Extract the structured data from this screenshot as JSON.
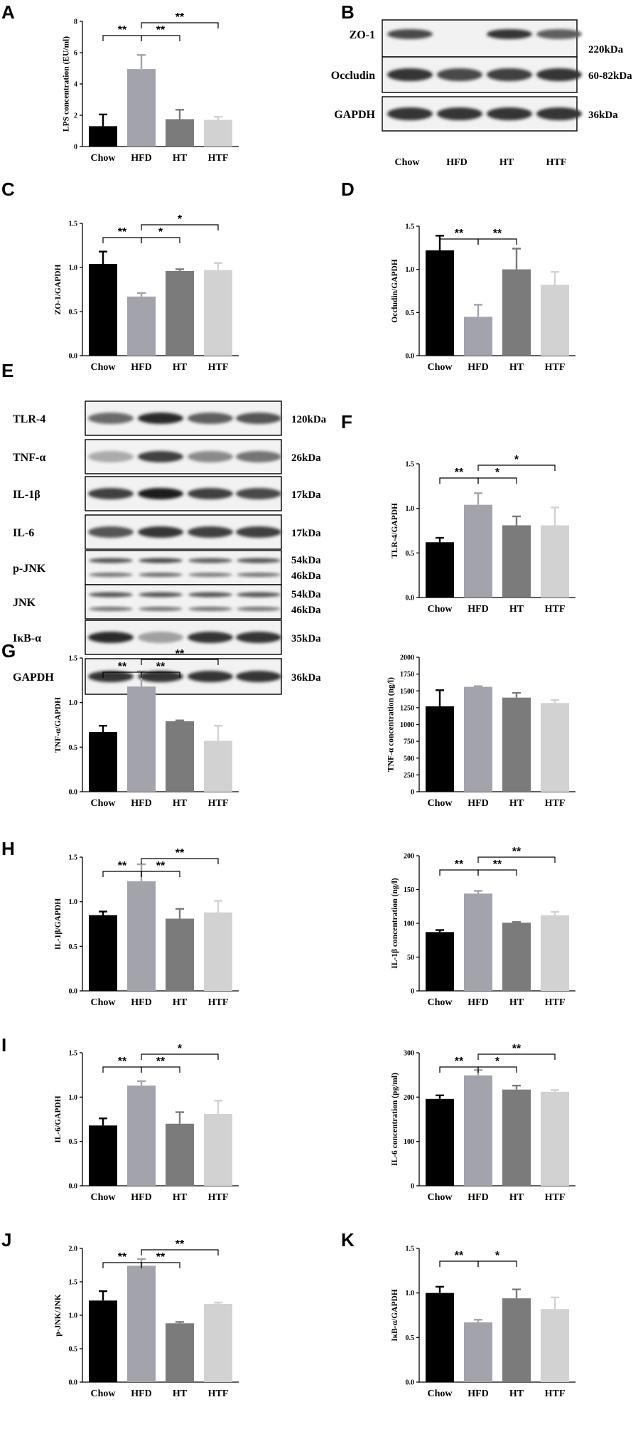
{
  "panel_labels": [
    "A",
    "B",
    "C",
    "D",
    "E",
    "F",
    "G",
    "H",
    "I",
    "J",
    "K"
  ],
  "blot_B": {
    "label": "B",
    "rows": [
      {
        "name": "ZO-1",
        "kda": "220kDa",
        "intensity": [
          0.75,
          0.0,
          0.85,
          0.65
        ]
      },
      {
        "name": "Occludin",
        "kda": "60-82kDa",
        "intensity": [
          0.85,
          0.75,
          0.8,
          0.85
        ]
      },
      {
        "name": "GAPDH",
        "kda": "36kDa",
        "intensity": [
          0.85,
          0.85,
          0.85,
          0.85
        ]
      }
    ],
    "lanes": [
      "Chow",
      "HFD",
      "HT",
      "HTF"
    ]
  },
  "blot_E": {
    "label": "E",
    "rows": [
      {
        "name": "TLR-4",
        "kda": [
          "120kDa"
        ],
        "intensity": [
          0.6,
          0.9,
          0.65,
          0.7
        ]
      },
      {
        "name": "TNF-α",
        "kda": [
          "26kDa"
        ],
        "intensity": [
          0.3,
          0.8,
          0.45,
          0.55
        ]
      },
      {
        "name": "IL-1β",
        "kda": [
          "17kDa"
        ],
        "intensity": [
          0.8,
          0.95,
          0.8,
          0.75
        ]
      },
      {
        "name": "IL-6",
        "kda": [
          "17kDa"
        ],
        "intensity": [
          0.7,
          0.85,
          0.8,
          0.8
        ]
      },
      {
        "name": "p-JNK",
        "kda": [
          "54kDa",
          "46kDa"
        ],
        "intensity": [
          0.7,
          0.75,
          0.65,
          0.7
        ]
      },
      {
        "name": "JNK",
        "kda": [
          "54kDa",
          "46kDa"
        ],
        "intensity": [
          0.7,
          0.7,
          0.7,
          0.7
        ]
      },
      {
        "name": "IκB-α",
        "kda": [
          "35kDa"
        ],
        "intensity": [
          0.9,
          0.35,
          0.85,
          0.85
        ]
      },
      {
        "name": "GAPDH",
        "kda": [
          "36kDa"
        ],
        "intensity": [
          0.85,
          0.85,
          0.85,
          0.85
        ]
      }
    ]
  },
  "chart_data": [
    {
      "id": "A",
      "type": "bar",
      "ylabel": "LPS concentration (EU/ml)",
      "categories": [
        "Chow",
        "HFD",
        "HT",
        "HTF"
      ],
      "values": [
        1.3,
        4.95,
        1.75,
        1.7
      ],
      "errors": [
        0.75,
        0.9,
        0.6,
        0.2
      ],
      "ylim": [
        0,
        8
      ],
      "yticks": [
        "0",
        "2",
        "4",
        "6",
        "8"
      ],
      "ytick_values": [
        0,
        2,
        4,
        6,
        8
      ],
      "colors": [
        "#000000",
        "#a3a3ab",
        "#7b7b7b",
        "#d2d2d2"
      ],
      "significance": [
        {
          "from": 1,
          "to": 0,
          "label": "**"
        },
        {
          "from": 1,
          "to": 2,
          "label": "**"
        },
        {
          "from": 1,
          "to": 3,
          "label": "**"
        }
      ]
    },
    {
      "id": "C",
      "type": "bar",
      "ylabel": "ZO-1/GAPDH",
      "categories": [
        "Chow",
        "HFD",
        "HT",
        "HTF"
      ],
      "values": [
        1.04,
        0.67,
        0.96,
        0.97
      ],
      "errors": [
        0.14,
        0.04,
        0.02,
        0.08
      ],
      "ylim": [
        0,
        1.5
      ],
      "yticks": [
        "0.0",
        "0.5",
        "1.0",
        "1.5"
      ],
      "ytick_values": [
        0,
        0.5,
        1.0,
        1.5
      ],
      "colors": [
        "#000000",
        "#a3a3ab",
        "#7b7b7b",
        "#d2d2d2"
      ],
      "significance": [
        {
          "from": 1,
          "to": 0,
          "label": "**"
        },
        {
          "from": 1,
          "to": 2,
          "label": "*"
        },
        {
          "from": 1,
          "to": 3,
          "label": "*"
        }
      ]
    },
    {
      "id": "D",
      "type": "bar",
      "ylabel": "Occludin/GAPDH",
      "categories": [
        "Chow",
        "HFD",
        "HT",
        "HTF"
      ],
      "values": [
        1.22,
        0.45,
        1.0,
        0.82
      ],
      "errors": [
        0.17,
        0.14,
        0.24,
        0.15
      ],
      "ylim": [
        0,
        1.5
      ],
      "yticks": [
        "0.0",
        "0.5",
        "1.0",
        "1.5"
      ],
      "ytick_values": [
        0,
        0.5,
        1.0,
        1.5
      ],
      "colors": [
        "#000000",
        "#a3a3ab",
        "#7b7b7b",
        "#d2d2d2"
      ],
      "significance": [
        {
          "from": 1,
          "to": 0,
          "label": "**"
        },
        {
          "from": 1,
          "to": 2,
          "label": "**"
        }
      ]
    },
    {
      "id": "F",
      "type": "bar",
      "ylabel": "TLR-4/GAPDH",
      "categories": [
        "Chow",
        "HFD",
        "HT",
        "HTF"
      ],
      "values": [
        0.62,
        1.04,
        0.81,
        0.81
      ],
      "errors": [
        0.05,
        0.13,
        0.1,
        0.2
      ],
      "ylim": [
        0,
        1.5
      ],
      "yticks": [
        "0.0",
        "0.5",
        "1.0",
        "1.5"
      ],
      "ytick_values": [
        0,
        0.5,
        1.0,
        1.5
      ],
      "colors": [
        "#000000",
        "#a3a3ab",
        "#7b7b7b",
        "#d2d2d2"
      ],
      "significance": [
        {
          "from": 1,
          "to": 0,
          "label": "**"
        },
        {
          "from": 1,
          "to": 2,
          "label": "*"
        },
        {
          "from": 1,
          "to": 3,
          "label": "*"
        }
      ]
    },
    {
      "id": "G1",
      "type": "bar",
      "ylabel": "TNF-α/GAPDH",
      "categories": [
        "Chow",
        "HFD",
        "HT",
        "HTF"
      ],
      "values": [
        0.67,
        1.18,
        0.79,
        0.57
      ],
      "errors": [
        0.07,
        0.17,
        0.01,
        0.17
      ],
      "ylim": [
        0,
        1.5
      ],
      "yticks": [
        "0.0",
        "0.5",
        "1.0",
        "1.5"
      ],
      "ytick_values": [
        0,
        0.5,
        1.0,
        1.5
      ],
      "colors": [
        "#000000",
        "#a3a3ab",
        "#7b7b7b",
        "#d2d2d2"
      ],
      "significance": [
        {
          "from": 1,
          "to": 0,
          "label": "**"
        },
        {
          "from": 1,
          "to": 2,
          "label": "**"
        },
        {
          "from": 1,
          "to": 3,
          "label": "**"
        }
      ]
    },
    {
      "id": "G2",
      "type": "bar",
      "ylabel": "TNF-α concentration (ng/l)",
      "categories": [
        "Chow",
        "HFD",
        "HT",
        "HTF"
      ],
      "values": [
        1270,
        1560,
        1400,
        1320
      ],
      "errors": [
        240,
        10,
        70,
        45
      ],
      "ylim": [
        0,
        2000
      ],
      "yticks": [
        "0",
        "250",
        "500",
        "750",
        "1000",
        "1250",
        "1500",
        "1750",
        "2000"
      ],
      "ytick_values": [
        0,
        250,
        500,
        750,
        1000,
        1250,
        1500,
        1750,
        2000
      ],
      "colors": [
        "#000000",
        "#a3a3ab",
        "#7b7b7b",
        "#d2d2d2"
      ],
      "significance": []
    },
    {
      "id": "H1",
      "type": "bar",
      "ylabel": "IL-1β/GAPDH",
      "categories": [
        "Chow",
        "HFD",
        "HT",
        "HTF"
      ],
      "values": [
        0.85,
        1.23,
        0.81,
        0.88
      ],
      "errors": [
        0.04,
        0.19,
        0.11,
        0.13
      ],
      "ylim": [
        0,
        1.5
      ],
      "yticks": [
        "0.0",
        "0.5",
        "1.0",
        "1.5"
      ],
      "ytick_values": [
        0,
        0.5,
        1.0,
        1.5
      ],
      "colors": [
        "#000000",
        "#a3a3ab",
        "#7b7b7b",
        "#d2d2d2"
      ],
      "significance": [
        {
          "from": 1,
          "to": 0,
          "label": "**"
        },
        {
          "from": 1,
          "to": 2,
          "label": "**"
        },
        {
          "from": 1,
          "to": 3,
          "label": "**"
        }
      ]
    },
    {
      "id": "H2",
      "type": "bar",
      "ylabel": "IL-1β concentration (ng/l)",
      "categories": [
        "Chow",
        "HFD",
        "HT",
        "HTF"
      ],
      "values": [
        87,
        144,
        101,
        112
      ],
      "errors": [
        3,
        4,
        1,
        5
      ],
      "ylim": [
        0,
        200
      ],
      "yticks": [
        "0",
        "50",
        "100",
        "150",
        "200"
      ],
      "ytick_values": [
        0,
        50,
        100,
        150,
        200
      ],
      "colors": [
        "#000000",
        "#a3a3ab",
        "#7b7b7b",
        "#d2d2d2"
      ],
      "significance": [
        {
          "from": 1,
          "to": 0,
          "label": "**"
        },
        {
          "from": 1,
          "to": 2,
          "label": "**"
        },
        {
          "from": 1,
          "to": 3,
          "label": "**"
        }
      ]
    },
    {
      "id": "I1",
      "type": "bar",
      "ylabel": "IL-6/GAPDH",
      "categories": [
        "Chow",
        "HFD",
        "HT",
        "HTF"
      ],
      "values": [
        0.68,
        1.13,
        0.7,
        0.81
      ],
      "errors": [
        0.08,
        0.05,
        0.13,
        0.15
      ],
      "ylim": [
        0,
        1.5
      ],
      "yticks": [
        "0.0",
        "0.5",
        "1.0",
        "1.5"
      ],
      "ytick_values": [
        0,
        0.5,
        1.0,
        1.5
      ],
      "colors": [
        "#000000",
        "#a3a3ab",
        "#7b7b7b",
        "#d2d2d2"
      ],
      "significance": [
        {
          "from": 1,
          "to": 0,
          "label": "**"
        },
        {
          "from": 1,
          "to": 2,
          "label": "**"
        },
        {
          "from": 1,
          "to": 3,
          "label": "*"
        }
      ]
    },
    {
      "id": "I2",
      "type": "bar",
      "ylabel": "IL-6 concentration (pg/ml)",
      "categories": [
        "Chow",
        "HFD",
        "HT",
        "HTF"
      ],
      "values": [
        196,
        249,
        217,
        212
      ],
      "errors": [
        8,
        12,
        9,
        4
      ],
      "ylim": [
        0,
        300
      ],
      "yticks": [
        "0",
        "100",
        "200",
        "300"
      ],
      "ytick_values": [
        0,
        100,
        200,
        300
      ],
      "colors": [
        "#000000",
        "#a3a3ab",
        "#7b7b7b",
        "#d2d2d2"
      ],
      "significance": [
        {
          "from": 1,
          "to": 0,
          "label": "**"
        },
        {
          "from": 1,
          "to": 2,
          "label": "*"
        },
        {
          "from": 1,
          "to": 3,
          "label": "**"
        }
      ]
    },
    {
      "id": "J",
      "type": "bar",
      "ylabel": "p-JNK/JNK",
      "categories": [
        "Chow",
        "HFD",
        "HT",
        "HTF"
      ],
      "values": [
        1.22,
        1.74,
        0.88,
        1.17
      ],
      "errors": [
        0.14,
        0.1,
        0.02,
        0.02
      ],
      "ylim": [
        0,
        2.0
      ],
      "yticks": [
        "0.0",
        "0.5",
        "1.0",
        "1.5",
        "2.0"
      ],
      "ytick_values": [
        0,
        0.5,
        1.0,
        1.5,
        2.0
      ],
      "colors": [
        "#000000",
        "#a3a3ab",
        "#7b7b7b",
        "#d2d2d2"
      ],
      "significance": [
        {
          "from": 1,
          "to": 0,
          "label": "**"
        },
        {
          "from": 1,
          "to": 2,
          "label": "**"
        },
        {
          "from": 1,
          "to": 3,
          "label": "**"
        }
      ]
    },
    {
      "id": "K",
      "type": "bar",
      "ylabel": "IκB-α/GAPDH",
      "categories": [
        "Chow",
        "HFD",
        "HT",
        "HTF"
      ],
      "values": [
        1.0,
        0.67,
        0.94,
        0.82
      ],
      "errors": [
        0.07,
        0.03,
        0.1,
        0.13
      ],
      "ylim": [
        0,
        1.5
      ],
      "yticks": [
        "0.0",
        "0.5",
        "1.0",
        "1.5"
      ],
      "ytick_values": [
        0,
        0.5,
        1.0,
        1.5
      ],
      "colors": [
        "#000000",
        "#a3a3ab",
        "#7b7b7b",
        "#d2d2d2"
      ],
      "significance": [
        {
          "from": 1,
          "to": 0,
          "label": "**"
        },
        {
          "from": 1,
          "to": 2,
          "label": "*"
        }
      ]
    }
  ]
}
